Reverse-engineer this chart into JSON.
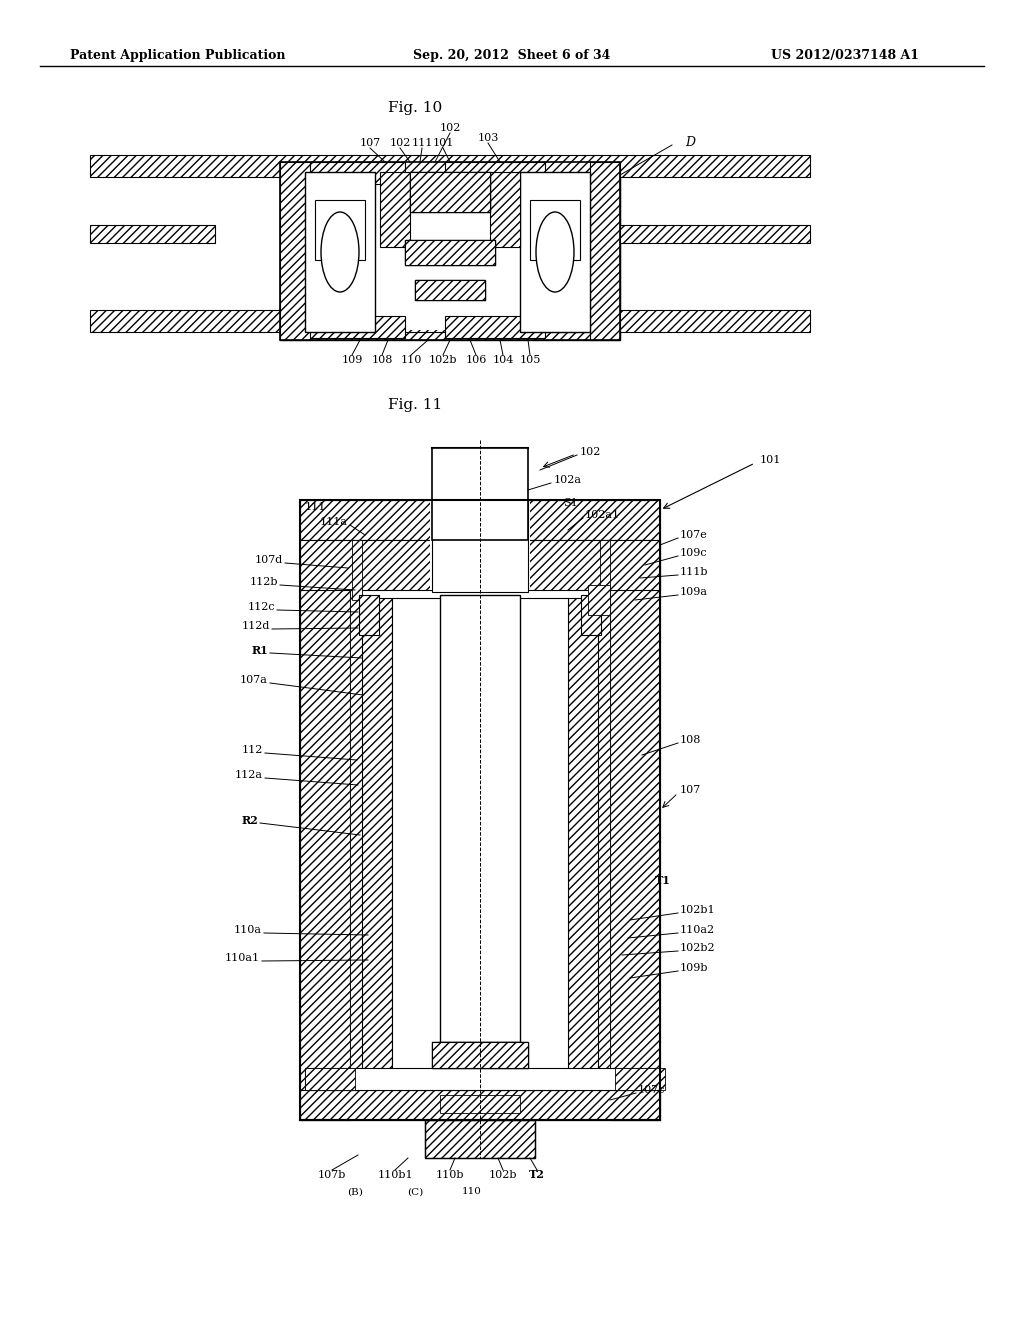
{
  "background_color": "#ffffff",
  "header_left": "Patent Application Publication",
  "header_center": "Sep. 20, 2012  Sheet 6 of 34",
  "header_right": "US 2012/0237148 A1",
  "fig10_title": "Fig. 10",
  "fig11_title": "Fig. 11"
}
